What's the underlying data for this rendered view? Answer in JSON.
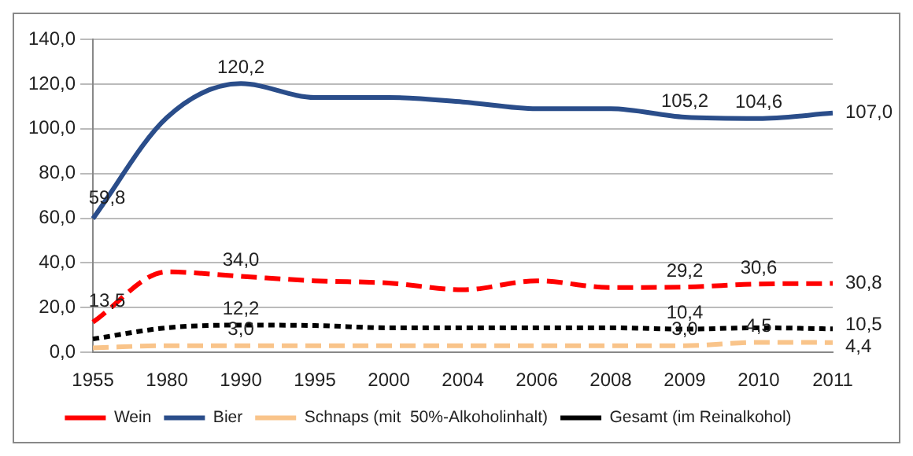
{
  "chart_data": {
    "type": "line",
    "categories": [
      "1955",
      "1980",
      "1990",
      "1995",
      "2000",
      "2004",
      "2006",
      "2008",
      "2009",
      "2010",
      "2011"
    ],
    "series": [
      {
        "name": "Wein",
        "color": "#ff0000",
        "line_style": "dashed",
        "values": [
          13.5,
          36,
          34.0,
          32,
          31,
          28,
          32,
          29,
          29.2,
          30.6,
          30.8
        ],
        "value_labels": [
          "13,5",
          null,
          "34,0",
          null,
          null,
          null,
          null,
          null,
          "29,2",
          "30,6",
          "30,8"
        ]
      },
      {
        "name": "Bier",
        "color": "#2a4d8a",
        "line_style": "solid",
        "values": [
          59.8,
          105,
          120.2,
          114,
          114,
          112,
          109,
          109,
          105.2,
          104.6,
          107.0
        ],
        "value_labels": [
          "59,8",
          null,
          "120,2",
          null,
          null,
          null,
          null,
          null,
          "105,2",
          "104,6",
          "107,0"
        ]
      },
      {
        "name": "Schnaps (mit  50%-Alkoholinhalt)",
        "color": "#f9c48a",
        "line_style": "dashed",
        "values": [
          2,
          3,
          3.0,
          3,
          3,
          3,
          3,
          3,
          3.0,
          4.5,
          4.4
        ],
        "value_labels": [
          null,
          null,
          "3,0",
          null,
          null,
          null,
          null,
          null,
          "3,0",
          "4,5",
          "4,4"
        ]
      },
      {
        "name": "Gesamt (im Reinalkohol)",
        "color": "#000000",
        "line_style": "dotted",
        "values": [
          6,
          11,
          12.2,
          12,
          11,
          11,
          11,
          11,
          10.4,
          11,
          10.5
        ],
        "value_labels": [
          null,
          null,
          "12,2",
          null,
          null,
          null,
          null,
          null,
          "10,4",
          null,
          "10,5"
        ]
      }
    ],
    "ylim": [
      0,
      140
    ],
    "yticks": [
      {
        "value": 0,
        "label": "0,0"
      },
      {
        "value": 20,
        "label": "20,0"
      },
      {
        "value": 40,
        "label": "40,0"
      },
      {
        "value": 60,
        "label": "60,0"
      },
      {
        "value": 80,
        "label": "80,0"
      },
      {
        "value": 100,
        "label": "100,0"
      },
      {
        "value": 120,
        "label": "120,0"
      },
      {
        "value": 140,
        "label": "140,0"
      }
    ],
    "grid": "y",
    "legend": "bottom",
    "marker": "none"
  }
}
